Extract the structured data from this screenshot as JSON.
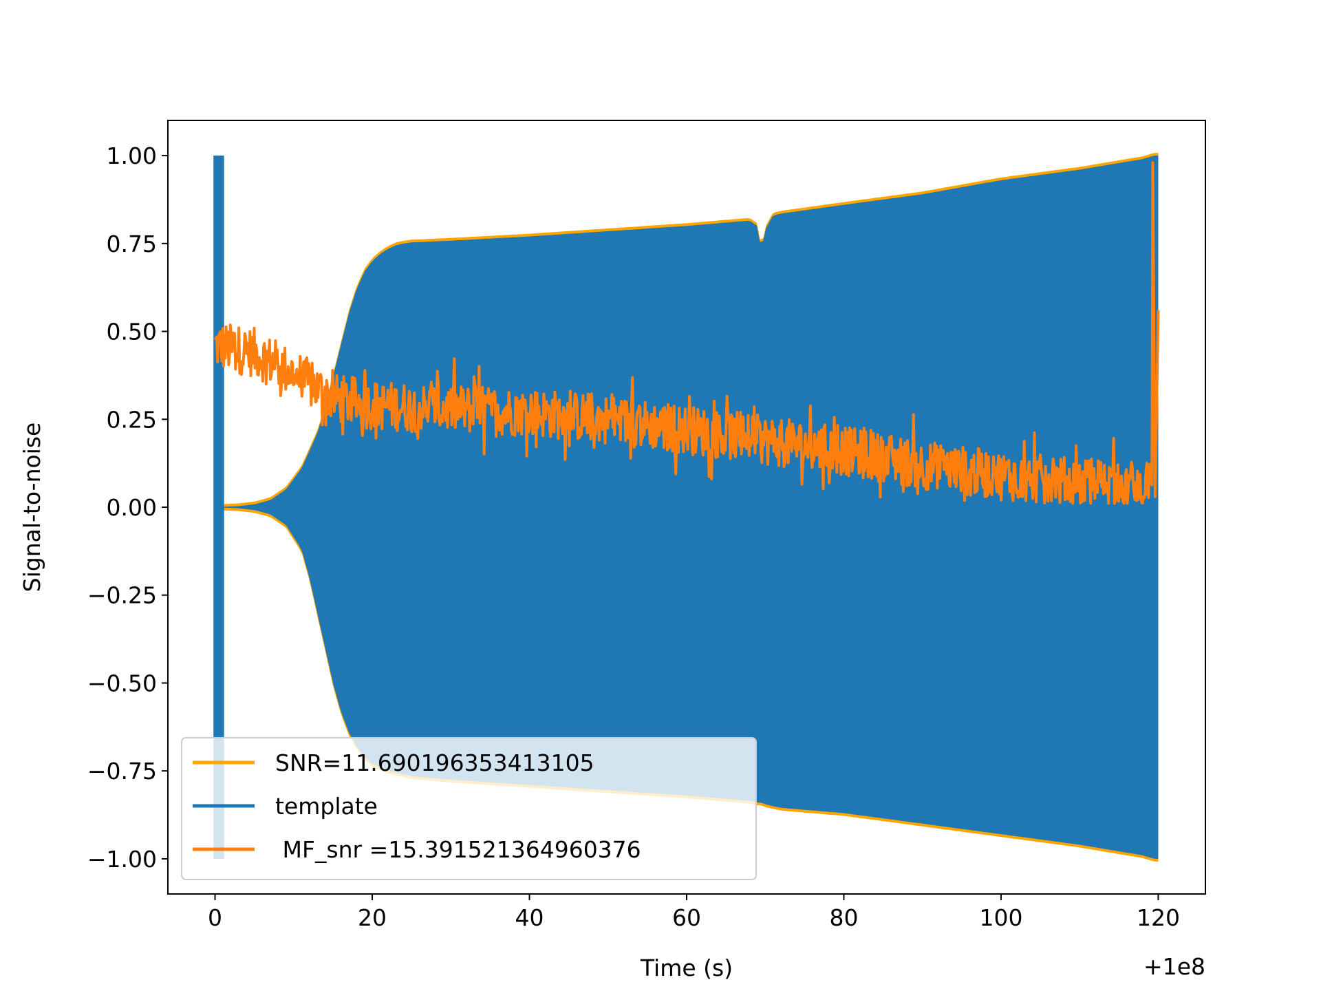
{
  "chart_data": {
    "type": "line",
    "xlabel": "Time (s)",
    "ylabel": "Signal-to-noise",
    "x_offset_label": "+1e8",
    "xlim": [
      -6,
      126
    ],
    "ylim": [
      -1.1,
      1.1
    ],
    "x_ticks": [
      0,
      20,
      40,
      60,
      80,
      100,
      120
    ],
    "x_tick_labels": [
      "0",
      "20",
      "40",
      "60",
      "80",
      "100",
      "120"
    ],
    "y_ticks": [
      1.0,
      0.75,
      0.5,
      0.25,
      0.0,
      -0.25,
      -0.5,
      -0.75,
      -1.0
    ],
    "y_tick_labels": [
      "1.00",
      "0.75",
      "0.50",
      "0.25",
      "0.00",
      "−0.25",
      "−0.50",
      "−0.75",
      "−1.00"
    ],
    "grid": false,
    "legend_position": "lower-left",
    "series": [
      {
        "name": "SNR=11.690196353413105",
        "color": "#ffa500",
        "kind": "envelope",
        "x": [
          0.3,
          1,
          3,
          5,
          7,
          9,
          11,
          12,
          13,
          14,
          15,
          16,
          17,
          18,
          19,
          20,
          21,
          22,
          23,
          24,
          25,
          30,
          40,
          50,
          60,
          68,
          69,
          69.5,
          70,
          71,
          72,
          80,
          90,
          100,
          110,
          118,
          119.5,
          120
        ],
        "upper": [
          0.0,
          0.001,
          0.003,
          0.008,
          0.02,
          0.05,
          0.11,
          0.16,
          0.21,
          0.28,
          0.37,
          0.46,
          0.55,
          0.62,
          0.67,
          0.7,
          0.72,
          0.735,
          0.745,
          0.75,
          0.753,
          0.758,
          0.77,
          0.785,
          0.8,
          0.815,
          0.8,
          0.73,
          0.79,
          0.83,
          0.835,
          0.86,
          0.89,
          0.93,
          0.96,
          0.99,
          1.0,
          1.0
        ],
        "lower": [
          0.0,
          -0.001,
          -0.003,
          -0.008,
          -0.02,
          -0.05,
          -0.12,
          -0.2,
          -0.3,
          -0.4,
          -0.5,
          -0.58,
          -0.64,
          -0.68,
          -0.71,
          -0.73,
          -0.74,
          -0.75,
          -0.755,
          -0.76,
          -0.765,
          -0.775,
          -0.79,
          -0.805,
          -0.82,
          -0.835,
          -0.84,
          -0.84,
          -0.845,
          -0.85,
          -0.855,
          -0.87,
          -0.9,
          -0.93,
          -0.96,
          -0.99,
          -1.0,
          -1.0
        ]
      },
      {
        "name": "template",
        "color": "#1f77b4",
        "kind": "envelope",
        "x": [
          0.3,
          1,
          3,
          5,
          7,
          9,
          11,
          12,
          13,
          14,
          15,
          16,
          17,
          18,
          19,
          20,
          21,
          22,
          23,
          24,
          25,
          30,
          40,
          50,
          60,
          68,
          69,
          69.5,
          70,
          71,
          72,
          80,
          90,
          100,
          110,
          118,
          119.5,
          120
        ],
        "upper": [
          0.0,
          0.001,
          0.003,
          0.008,
          0.02,
          0.05,
          0.11,
          0.16,
          0.21,
          0.28,
          0.37,
          0.46,
          0.55,
          0.62,
          0.67,
          0.7,
          0.72,
          0.735,
          0.745,
          0.75,
          0.753,
          0.758,
          0.77,
          0.785,
          0.8,
          0.815,
          0.8,
          0.73,
          0.79,
          0.83,
          0.835,
          0.86,
          0.89,
          0.93,
          0.96,
          0.99,
          1.0,
          1.0
        ],
        "lower": [
          0.0,
          -0.001,
          -0.003,
          -0.008,
          -0.02,
          -0.05,
          -0.12,
          -0.2,
          -0.3,
          -0.4,
          -0.5,
          -0.58,
          -0.64,
          -0.68,
          -0.71,
          -0.73,
          -0.74,
          -0.75,
          -0.755,
          -0.76,
          -0.765,
          -0.775,
          -0.79,
          -0.805,
          -0.82,
          -0.835,
          -0.84,
          -0.84,
          -0.845,
          -0.85,
          -0.855,
          -0.87,
          -0.9,
          -0.93,
          -0.96,
          -0.99,
          -1.0,
          -1.0
        ],
        "spike": {
          "x": [
            -0.2,
            0.8
          ],
          "y": [
            -1.0,
            1.0
          ]
        }
      },
      {
        "name": " MF_snr =15.391521364960376",
        "color": "#ff7f0e",
        "kind": "noisy",
        "x_range": [
          0,
          120
        ],
        "trend_x": [
          0,
          5,
          10,
          15,
          20,
          30,
          40,
          50,
          60,
          70,
          80,
          90,
          100,
          110,
          119
        ],
        "trend_y": [
          0.46,
          0.44,
          0.38,
          0.31,
          0.29,
          0.28,
          0.27,
          0.25,
          0.22,
          0.19,
          0.16,
          0.12,
          0.09,
          0.07,
          0.06
        ],
        "noise_amp": 0.07,
        "end_spike": {
          "x": [
            119.3,
            119.6,
            120
          ],
          "y": [
            0.98,
            0.03,
            0.56
          ]
        }
      }
    ]
  }
}
